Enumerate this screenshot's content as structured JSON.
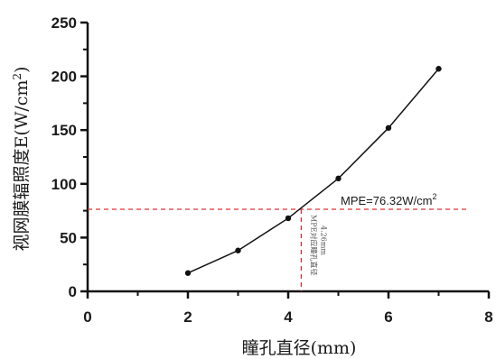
{
  "chart_data": {
    "type": "line",
    "xlabel": "瞳孔直径(mm)",
    "ylabel": "视网膜辐照度E(W/cm",
    "ylabel_sup": "2",
    "ylabel_close": ")",
    "xlim": [
      0,
      8
    ],
    "ylim": [
      0,
      250
    ],
    "x_ticks": [
      0,
      2,
      4,
      6,
      8
    ],
    "y_ticks": [
      0,
      50,
      100,
      150,
      200,
      250
    ],
    "grid": false,
    "series": [
      {
        "x": [
          2,
          3,
          4,
          5,
          6,
          7
        ],
        "y": [
          17,
          38,
          68,
          105,
          152,
          207
        ],
        "color": "#111111",
        "marker": "circle"
      }
    ],
    "threshold": {
      "y": 76.32,
      "x": 4.26,
      "label": "MPE=76.32W/cm",
      "label_sup": "2",
      "color": "#e03030",
      "vertical_label": "MPE对应瞳孔直径",
      "vertical_value": "4.26mm"
    }
  }
}
